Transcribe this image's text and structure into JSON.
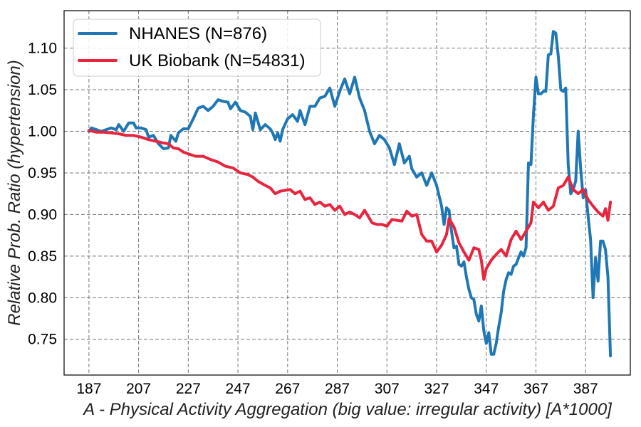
{
  "chart_data": {
    "type": "line",
    "title": "",
    "xlabel": "A - Physical Activity Aggregation (big value: irregular activity) [A*1000]",
    "ylabel": "Relative Prob. Ratio (hypertension)",
    "xlim": [
      177,
      405
    ],
    "ylim": [
      0.707,
      1.145
    ],
    "xticks": [
      187,
      207,
      227,
      247,
      267,
      287,
      307,
      327,
      347,
      367,
      387
    ],
    "yticks": [
      0.75,
      0.8,
      0.85,
      0.9,
      0.95,
      1.0,
      1.05,
      1.1
    ],
    "ytick_labels": [
      "0.75",
      "0.80",
      "0.85",
      "0.90",
      "0.95",
      "1.00",
      "1.05",
      "1.10"
    ],
    "grid": true,
    "legend_position": "top-left",
    "series": [
      {
        "name": "NHANES (N=876)",
        "color": "#1f77b4",
        "points": [
          [
            187,
            1.0
          ],
          [
            188,
            1.004
          ],
          [
            190,
            1.002
          ],
          [
            192,
            1.0
          ],
          [
            194,
            1.002
          ],
          [
            196,
            1.004
          ],
          [
            198,
            1.002
          ],
          [
            199,
            1.008
          ],
          [
            201,
            1.0
          ],
          [
            203,
            1.01
          ],
          [
            205,
            1.01
          ],
          [
            206,
            1.004
          ],
          [
            208,
            1.004
          ],
          [
            210,
            1.002
          ],
          [
            211,
            0.993
          ],
          [
            213,
            0.995
          ],
          [
            215,
            0.985
          ],
          [
            217,
            0.979
          ],
          [
            219,
            0.98
          ],
          [
            220,
            0.995
          ],
          [
            222,
            0.988
          ],
          [
            223,
            0.998
          ],
          [
            225,
            1.003
          ],
          [
            227,
            1.003
          ],
          [
            229,
            1.015
          ],
          [
            231,
            1.028
          ],
          [
            233,
            1.03
          ],
          [
            235,
            1.025
          ],
          [
            237,
            1.03
          ],
          [
            239,
            1.038
          ],
          [
            241,
            1.036
          ],
          [
            243,
            1.035
          ],
          [
            244,
            1.027
          ],
          [
            246,
            1.035
          ],
          [
            248,
            1.025
          ],
          [
            250,
            1.023
          ],
          [
            252,
            1.018
          ],
          [
            253,
            1.002
          ],
          [
            254,
            1.022
          ],
          [
            256,
            1.002
          ],
          [
            258,
            1.008
          ],
          [
            260,
            1.003
          ],
          [
            261,
            0.998
          ],
          [
            262,
            0.99
          ],
          [
            263,
            0.998
          ],
          [
            264,
            0.988
          ],
          [
            265,
            1.002
          ],
          [
            267,
            1.015
          ],
          [
            269,
            1.02
          ],
          [
            271,
            1.012
          ],
          [
            272,
            1.025
          ],
          [
            274,
            1.008
          ],
          [
            276,
            1.03
          ],
          [
            278,
            1.03
          ],
          [
            280,
            1.04
          ],
          [
            282,
            1.042
          ],
          [
            284,
            1.052
          ],
          [
            286,
            1.03
          ],
          [
            288,
            1.048
          ],
          [
            290,
            1.063
          ],
          [
            292,
            1.045
          ],
          [
            294,
            1.065
          ],
          [
            296,
            1.04
          ],
          [
            298,
            1.025
          ],
          [
            300,
            1.0
          ],
          [
            302,
            0.985
          ],
          [
            304,
            0.995
          ],
          [
            306,
            0.99
          ],
          [
            308,
            0.98
          ],
          [
            310,
            0.96
          ],
          [
            312,
            0.985
          ],
          [
            314,
            0.962
          ],
          [
            316,
            0.97
          ],
          [
            317,
            0.955
          ],
          [
            319,
            0.945
          ],
          [
            321,
            0.95
          ],
          [
            323,
            0.935
          ],
          [
            325,
            0.95
          ],
          [
            327,
            0.935
          ],
          [
            329,
            0.91
          ],
          [
            330,
            0.888
          ],
          [
            331,
            0.908
          ],
          [
            332,
            0.905
          ],
          [
            333,
            0.88
          ],
          [
            334,
            0.86
          ],
          [
            335,
            0.862
          ],
          [
            336,
            0.84
          ],
          [
            337,
            0.838
          ],
          [
            338,
            0.843
          ],
          [
            339,
            0.825
          ],
          [
            340,
            0.81
          ],
          [
            341,
            0.8
          ],
          [
            342,
            0.798
          ],
          [
            343,
            0.78
          ],
          [
            344,
            0.772
          ],
          [
            345,
            0.79
          ],
          [
            346,
            0.76
          ],
          [
            347,
            0.745
          ],
          [
            348,
            0.758
          ],
          [
            349,
            0.732
          ],
          [
            350,
            0.732
          ],
          [
            351,
            0.745
          ],
          [
            352,
            0.765
          ],
          [
            353,
            0.782
          ],
          [
            354,
            0.808
          ],
          [
            355,
            0.822
          ],
          [
            356,
            0.83
          ],
          [
            357,
            0.828
          ],
          [
            358,
            0.838
          ],
          [
            359,
            0.84
          ],
          [
            360,
            0.848
          ],
          [
            361,
            0.855
          ],
          [
            362,
            0.85
          ],
          [
            363,
            0.86
          ],
          [
            364,
            0.962
          ],
          [
            365,
            0.96
          ],
          [
            366,
            1.02
          ],
          [
            367,
            1.065
          ],
          [
            368,
            1.045
          ],
          [
            369,
            1.045
          ],
          [
            370,
            1.048
          ],
          [
            371,
            1.048
          ],
          [
            372,
            1.092
          ],
          [
            373,
            1.093
          ],
          [
            374,
            1.12
          ],
          [
            375,
            1.118
          ],
          [
            376,
            1.09
          ],
          [
            377,
            1.05
          ],
          [
            378,
            1.048
          ],
          [
            379,
            1.052
          ],
          [
            380,
            0.96
          ],
          [
            381,
            0.925
          ],
          [
            382,
            0.93
          ],
          [
            383,
            0.94
          ],
          [
            384,
            1.0
          ],
          [
            385,
            0.955
          ],
          [
            386,
            0.92
          ],
          [
            387,
            0.93
          ],
          [
            388,
            0.898
          ],
          [
            389,
            0.87
          ],
          [
            390,
            0.8
          ],
          [
            391,
            0.848
          ],
          [
            392,
            0.82
          ],
          [
            393,
            0.868
          ],
          [
            394,
            0.868
          ],
          [
            395,
            0.858
          ],
          [
            396,
            0.825
          ],
          [
            397,
            0.73
          ]
        ]
      },
      {
        "name": "UK Biobank (N=54831)",
        "color": "#e8253e",
        "points": [
          [
            187,
            1.001
          ],
          [
            190,
            0.999
          ],
          [
            193,
            0.999
          ],
          [
            196,
            0.998
          ],
          [
            199,
            0.997
          ],
          [
            202,
            0.995
          ],
          [
            205,
            0.995
          ],
          [
            208,
            0.993
          ],
          [
            211,
            0.99
          ],
          [
            214,
            0.988
          ],
          [
            217,
            0.986
          ],
          [
            219,
            0.985
          ],
          [
            221,
            0.98
          ],
          [
            223,
            0.979
          ],
          [
            225,
            0.975
          ],
          [
            227,
            0.973
          ],
          [
            230,
            0.97
          ],
          [
            233,
            0.97
          ],
          [
            236,
            0.966
          ],
          [
            239,
            0.963
          ],
          [
            242,
            0.958
          ],
          [
            245,
            0.956
          ],
          [
            248,
            0.95
          ],
          [
            251,
            0.948
          ],
          [
            253,
            0.945
          ],
          [
            255,
            0.94
          ],
          [
            258,
            0.935
          ],
          [
            260,
            0.932
          ],
          [
            262,
            0.925
          ],
          [
            264,
            0.928
          ],
          [
            266,
            0.929
          ],
          [
            268,
            0.93
          ],
          [
            270,
            0.925
          ],
          [
            272,
            0.928
          ],
          [
            274,
            0.918
          ],
          [
            276,
            0.92
          ],
          [
            278,
            0.912
          ],
          [
            280,
            0.915
          ],
          [
            282,
            0.91
          ],
          [
            284,
            0.912
          ],
          [
            286,
            0.905
          ],
          [
            288,
            0.91
          ],
          [
            290,
            0.9
          ],
          [
            292,
            0.903
          ],
          [
            294,
            0.9
          ],
          [
            296,
            0.896
          ],
          [
            298,
            0.905
          ],
          [
            299,
            0.9
          ],
          [
            301,
            0.89
          ],
          [
            303,
            0.888
          ],
          [
            305,
            0.888
          ],
          [
            307,
            0.886
          ],
          [
            309,
            0.894
          ],
          [
            311,
            0.893
          ],
          [
            313,
            0.892
          ],
          [
            315,
            0.904
          ],
          [
            317,
            0.898
          ],
          [
            319,
            0.9
          ],
          [
            321,
            0.876
          ],
          [
            323,
            0.868
          ],
          [
            325,
            0.868
          ],
          [
            327,
            0.855
          ],
          [
            329,
            0.863
          ],
          [
            331,
            0.876
          ],
          [
            332,
            0.895
          ],
          [
            334,
            0.885
          ],
          [
            336,
            0.866
          ],
          [
            338,
            0.855
          ],
          [
            340,
            0.845
          ],
          [
            342,
            0.86
          ],
          [
            344,
            0.858
          ],
          [
            345,
            0.845
          ],
          [
            346,
            0.822
          ],
          [
            347,
            0.835
          ],
          [
            349,
            0.845
          ],
          [
            351,
            0.852
          ],
          [
            353,
            0.858
          ],
          [
            355,
            0.85
          ],
          [
            357,
            0.87
          ],
          [
            359,
            0.88
          ],
          [
            361,
            0.87
          ],
          [
            363,
            0.88
          ],
          [
            365,
            0.89
          ],
          [
            366,
            0.915
          ],
          [
            368,
            0.908
          ],
          [
            370,
            0.915
          ],
          [
            372,
            0.905
          ],
          [
            374,
            0.91
          ],
          [
            376,
            0.932
          ],
          [
            378,
            0.935
          ],
          [
            380,
            0.945
          ],
          [
            382,
            0.93
          ],
          [
            384,
            0.925
          ],
          [
            386,
            0.93
          ],
          [
            388,
            0.918
          ],
          [
            390,
            0.91
          ],
          [
            392,
            0.903
          ],
          [
            394,
            0.898
          ],
          [
            395,
            0.907
          ],
          [
            396,
            0.893
          ],
          [
            397,
            0.915
          ]
        ]
      }
    ]
  }
}
